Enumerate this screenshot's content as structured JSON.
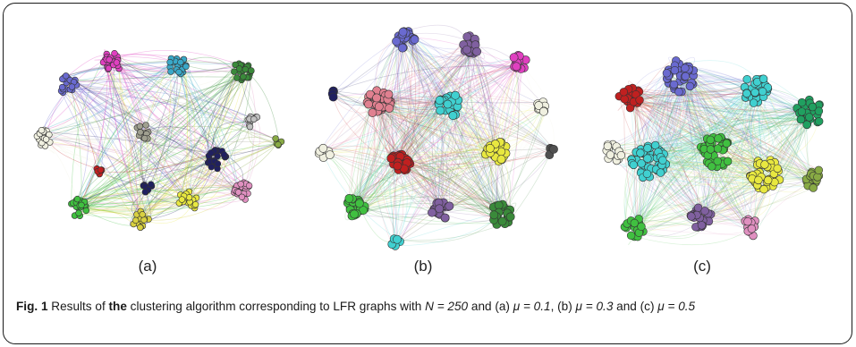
{
  "panels": [
    {
      "id": "a",
      "label": "(a)"
    },
    {
      "id": "b",
      "label": "(b)"
    },
    {
      "id": "c",
      "label": "(c)"
    }
  ],
  "colors": {
    "frame": "#1a1a1a",
    "communities": [
      "#6a6ad0",
      "#e040c0",
      "#3aa8c8",
      "#3a8a3a",
      "#f0f0e0",
      "#a0a090",
      "#c02020",
      "#202060",
      "#88aa44",
      "#c0c0c0",
      "#40c040",
      "#d8d040",
      "#e8e840",
      "#e090c0",
      "#e08090",
      "#40d0d0",
      "#20a060",
      "#8060a0",
      "#505050"
    ]
  },
  "caption": {
    "fig_label": "Fig. 1",
    "text_1": " Results of ",
    "bold_word": "the",
    "text_2": " clustering algorithm corresponding to LFR graphs with ",
    "n_expr": "N = 250",
    "text_3": " and (a) ",
    "mu_a": "μ = 0.1",
    "text_4": ", (b) ",
    "mu_b_1": "μ =",
    "mu_b_2": "0.3",
    "text_5": " and (c) ",
    "mu_c": "μ = 0.5"
  }
}
